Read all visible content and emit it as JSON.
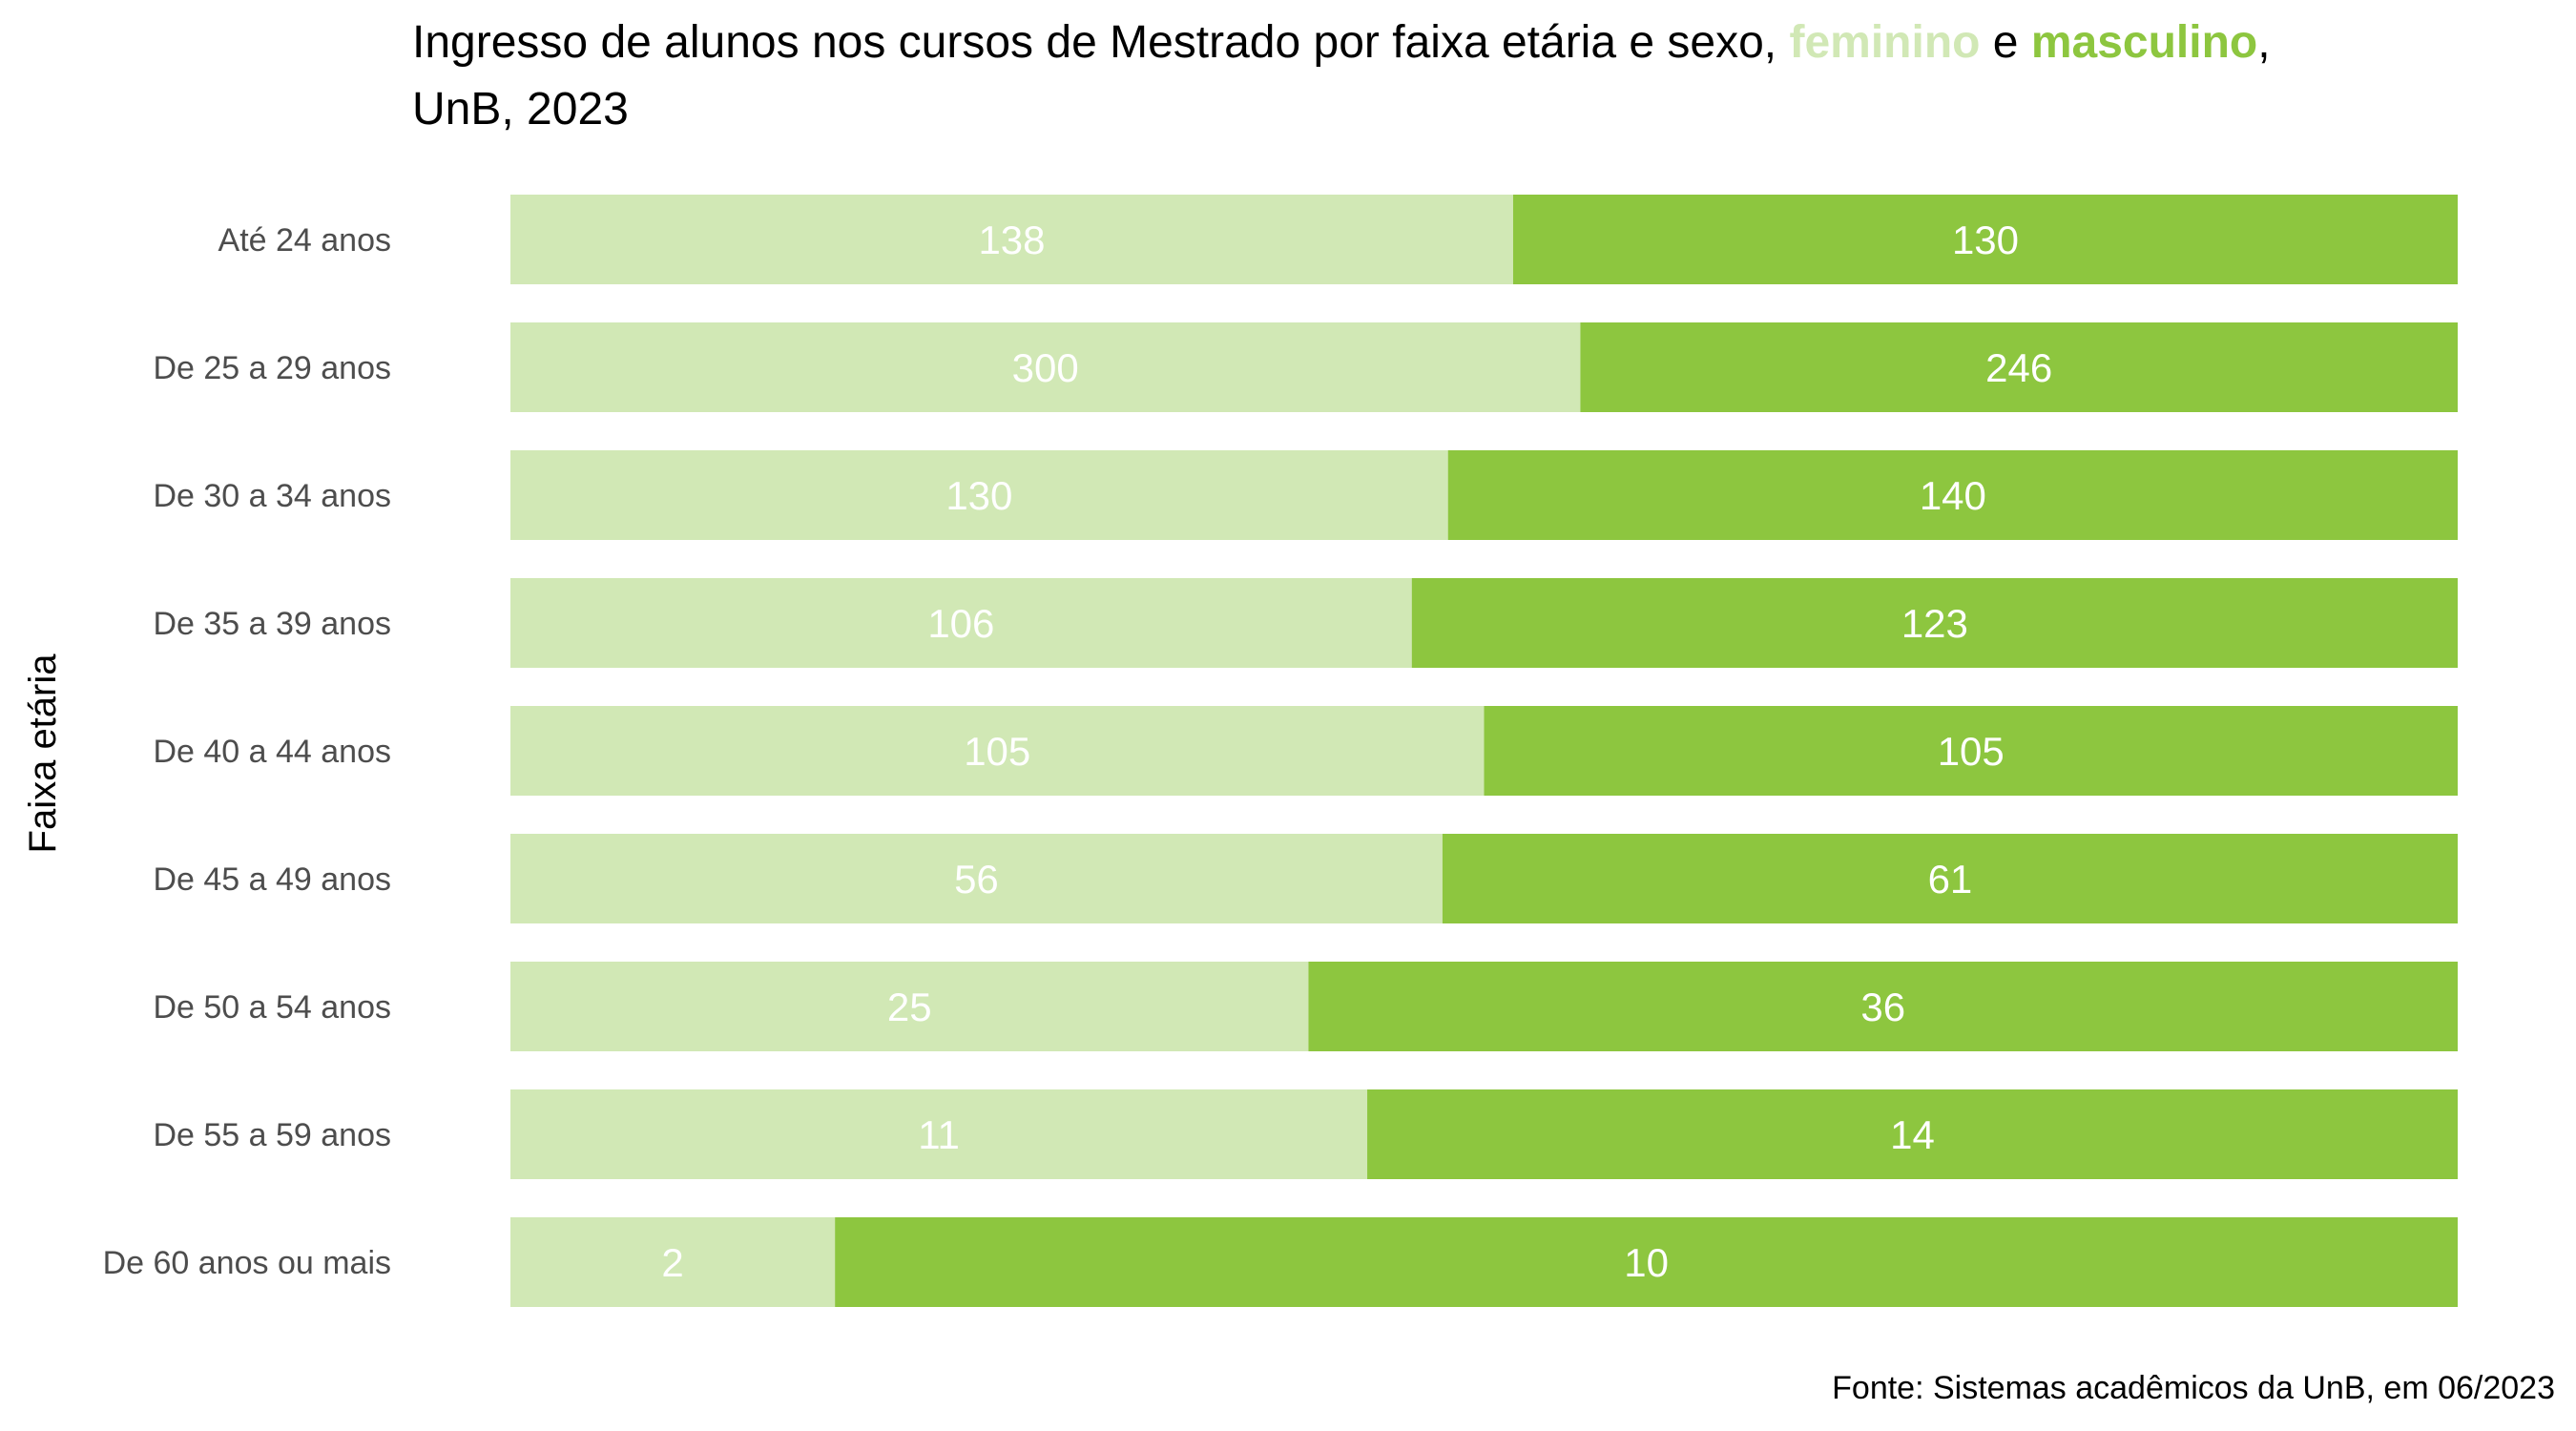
{
  "title": {
    "prefix": "Ingresso de alunos nos cursos de Mestrado por faixa etária e sexo, ",
    "fem": "feminino",
    "connector": " e ",
    "masc": "masculino",
    "suffix": ",",
    "line2": "UnB, 2023"
  },
  "caption": "Fonte: Sistemas acadêmicos da UnB, em 06/2023",
  "chart_data": {
    "type": "bar",
    "orientation": "horizontal",
    "stacking": "percent",
    "ylabel": "Faixa etária",
    "xlabel": "",
    "grid": false,
    "legend": "title-colored-words",
    "categories": [
      "Até 24 anos",
      "De 25 a 29 anos",
      "De 30 a 34 anos",
      "De 35 a 39 anos",
      "De 40 a 44 anos",
      "De 45 a 49 anos",
      "De 50 a 54 anos",
      "De 55 a 59 anos",
      "De 60 anos ou mais"
    ],
    "series": [
      {
        "name": "feminino",
        "color": "#d1e8b5",
        "values": [
          138,
          300,
          130,
          106,
          105,
          56,
          25,
          11,
          2
        ]
      },
      {
        "name": "masculino",
        "color": "#8dc63f",
        "values": [
          130,
          246,
          140,
          123,
          105,
          61,
          36,
          14,
          10
        ]
      }
    ]
  }
}
